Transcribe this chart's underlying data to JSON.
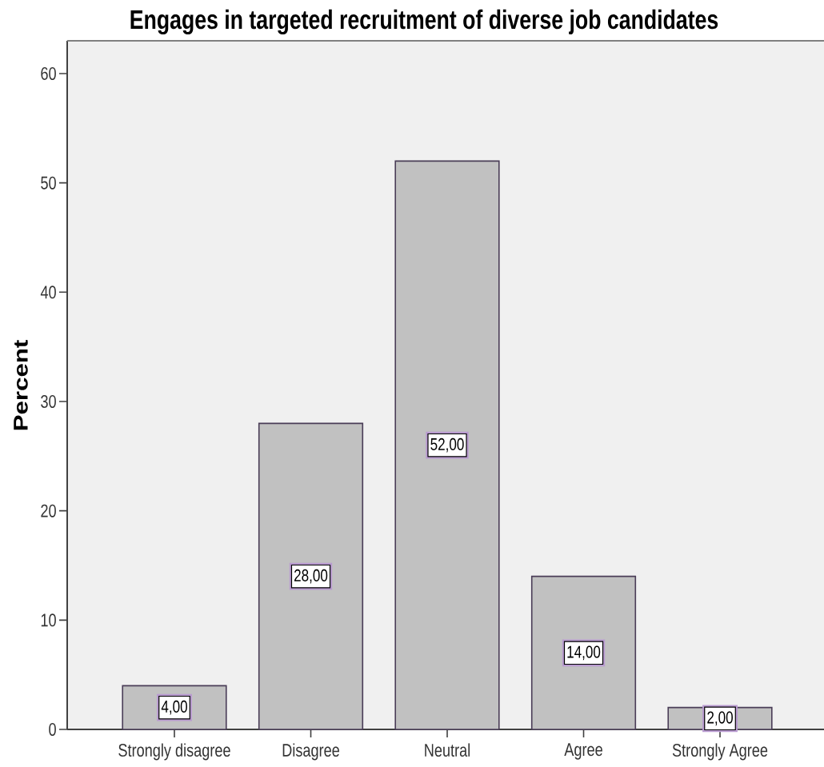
{
  "chart_data": {
    "type": "bar",
    "title": "Engages in targeted recruitment of diverse job candidates",
    "ylabel": "Percent",
    "categories": [
      "Strongly disagree",
      "Disagree",
      "Neutral",
      "Agree",
      "Strongly Agree"
    ],
    "values": [
      4,
      28,
      52,
      14,
      2
    ],
    "value_labels": [
      "4,00",
      "28,00",
      "52,00",
      "14,00",
      "2,00"
    ],
    "color": "#c1c1c1",
    "ylim": [
      0,
      63
    ],
    "yticks": [
      0,
      10,
      20,
      30,
      40,
      50,
      60
    ]
  }
}
